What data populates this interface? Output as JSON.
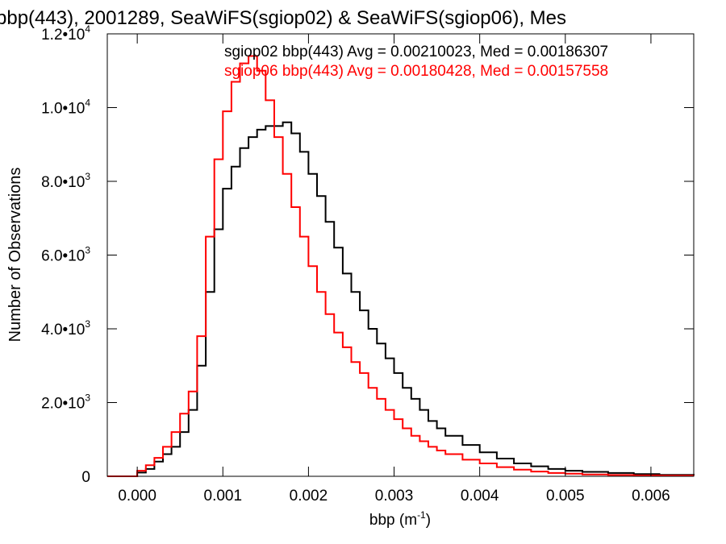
{
  "chart_data": {
    "type": "line",
    "title": "bbp(443), 2001289, SeaWiFS(sgiop02) & SeaWiFS(sgiop06), Mes",
    "xlabel": "bbp (m",
    "xlabel_sup": "-1",
    "xlabel_close": ")",
    "ylabel": "Number of Observations",
    "xlim": [
      -0.00035,
      0.0065
    ],
    "ylim": [
      0,
      12000
    ],
    "grid": false,
    "step": true,
    "x_ticks": [
      {
        "value": 0.0,
        "label": "0.000"
      },
      {
        "value": 0.001,
        "label": "0.001"
      },
      {
        "value": 0.002,
        "label": "0.002"
      },
      {
        "value": 0.003,
        "label": "0.003"
      },
      {
        "value": 0.004,
        "label": "0.004"
      },
      {
        "value": 0.005,
        "label": "0.005"
      },
      {
        "value": 0.006,
        "label": "0.006"
      }
    ],
    "y_ticks": [
      {
        "value": 0,
        "label": "0",
        "exp": ""
      },
      {
        "value": 2000,
        "label": "2.0•10",
        "exp": "3"
      },
      {
        "value": 4000,
        "label": "4.0•10",
        "exp": "3"
      },
      {
        "value": 6000,
        "label": "6.0•10",
        "exp": "3"
      },
      {
        "value": 8000,
        "label": "8.0•10",
        "exp": "3"
      },
      {
        "value": 10000,
        "label": "1.0•10",
        "exp": "4"
      },
      {
        "value": 12000,
        "label": "1.2•10",
        "exp": "4"
      }
    ],
    "annotations": [
      {
        "text": "sgiop02 bbp(443) Avg = 0.00210023, Med = 0.00186307",
        "color": "#000000"
      },
      {
        "text": "sgiop06 bbp(443) Avg = 0.00180428, Med = 0.00157558",
        "color": "#ff0000"
      }
    ],
    "series": [
      {
        "color": "#000000",
        "x": [
          -0.00035,
          -0.0001,
          0.0,
          0.0001,
          0.0002,
          0.0003,
          0.0004,
          0.0005,
          0.0006,
          0.0007,
          0.0008,
          0.0009,
          0.001,
          0.0011,
          0.0012,
          0.0013,
          0.0014,
          0.0015,
          0.0016,
          0.0017,
          0.0018,
          0.0019,
          0.002,
          0.0021,
          0.0022,
          0.0023,
          0.0024,
          0.0025,
          0.0026,
          0.0027,
          0.0028,
          0.0029,
          0.003,
          0.0031,
          0.0032,
          0.0033,
          0.0034,
          0.0035,
          0.0036,
          0.0038,
          0.004,
          0.0042,
          0.0044,
          0.0046,
          0.0048,
          0.005,
          0.0052,
          0.0055,
          0.0058,
          0.0061,
          0.0065
        ],
        "values": [
          0,
          0,
          100,
          200,
          400,
          600,
          800,
          1200,
          1800,
          3000,
          5000,
          6700,
          7800,
          8400,
          8900,
          9200,
          9400,
          9500,
          9500,
          9600,
          9300,
          8800,
          8200,
          7600,
          6900,
          6200,
          5500,
          5000,
          4500,
          4000,
          3600,
          3200,
          2800,
          2400,
          2100,
          1800,
          1500,
          1300,
          1100,
          850,
          650,
          480,
          350,
          270,
          200,
          150,
          120,
          90,
          60,
          40,
          30
        ]
      },
      {
        "color": "#ff0000",
        "x": [
          -0.00035,
          -0.0001,
          0.0,
          0.0001,
          0.0002,
          0.0003,
          0.0004,
          0.0005,
          0.0006,
          0.0007,
          0.0008,
          0.0009,
          0.001,
          0.0011,
          0.0012,
          0.0013,
          0.0014,
          0.0015,
          0.0016,
          0.0017,
          0.0018,
          0.0019,
          0.002,
          0.0021,
          0.0022,
          0.0023,
          0.0024,
          0.0025,
          0.0026,
          0.0027,
          0.0028,
          0.0029,
          0.003,
          0.0031,
          0.0032,
          0.0033,
          0.0034,
          0.0035,
          0.0036,
          0.0038,
          0.004,
          0.0042,
          0.0044,
          0.0046,
          0.0048,
          0.005,
          0.0052,
          0.0055,
          0.0058,
          0.0061,
          0.0065
        ],
        "values": [
          0,
          0,
          150,
          300,
          500,
          800,
          1200,
          1700,
          2300,
          3800,
          6500,
          8600,
          9900,
          10700,
          11200,
          11400,
          11000,
          10200,
          9200,
          8200,
          7300,
          6500,
          5700,
          5000,
          4400,
          3900,
          3500,
          3100,
          2800,
          2400,
          2100,
          1800,
          1550,
          1300,
          1100,
          950,
          800,
          700,
          600,
          450,
          350,
          250,
          180,
          130,
          90,
          70,
          50,
          35,
          25,
          20,
          15
        ]
      }
    ]
  }
}
